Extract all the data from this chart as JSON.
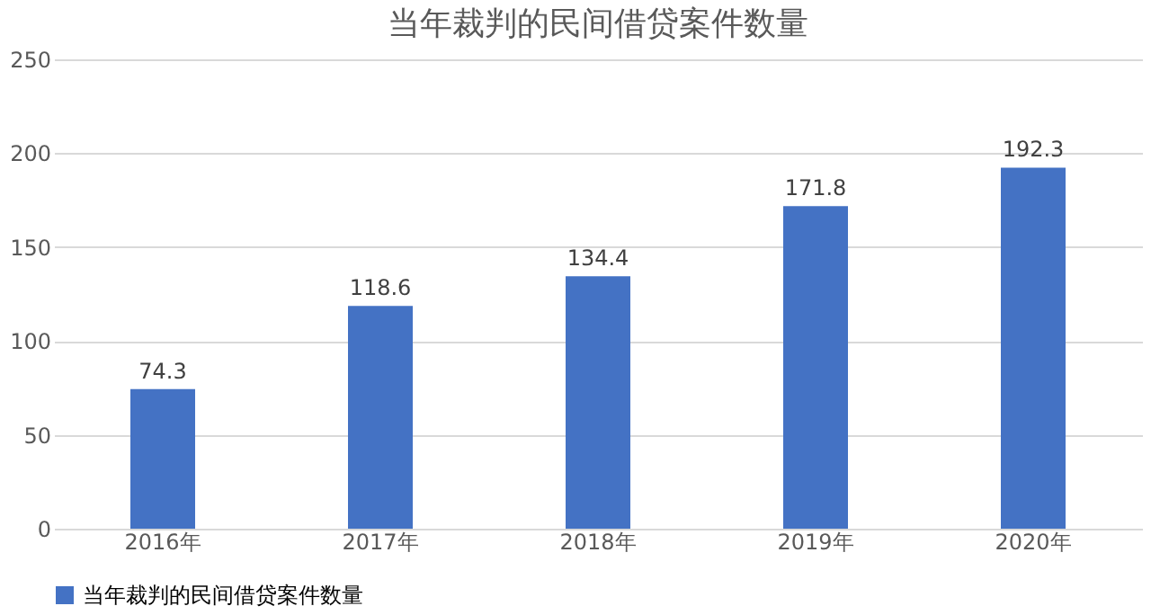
{
  "chart_data": {
    "type": "bar",
    "title": "当年裁判的民间借贷案件数量",
    "categories": [
      "2016年",
      "2017年",
      "2018年",
      "2019年",
      "2020年"
    ],
    "series": [
      {
        "name": "当年裁判的民间借贷案件数量",
        "color": "#4472c4",
        "values": [
          74.3,
          118.6,
          134.4,
          171.8,
          192.3
        ]
      }
    ],
    "ylim": [
      0,
      250
    ],
    "yticks": [
      0,
      50,
      100,
      150,
      200,
      250
    ],
    "grid": "y",
    "legend": "bottom",
    "data_labels": true
  }
}
